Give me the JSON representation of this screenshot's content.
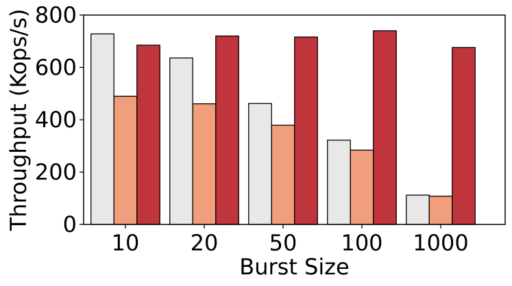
{
  "chart_data": {
    "type": "bar",
    "title": "",
    "xlabel": "Burst Size",
    "ylabel": "Throughput (Kops/s)",
    "categories": [
      "10",
      "20",
      "50",
      "100",
      "1000"
    ],
    "ylim": [
      0,
      800
    ],
    "yticks": [
      0,
      200,
      400,
      600,
      800
    ],
    "grid": false,
    "legend": "none",
    "series": [
      {
        "color": "#e8e8e8",
        "values": [
          728,
          636,
          462,
          322,
          112
        ]
      },
      {
        "color": "#f09e7c",
        "values": [
          490,
          461,
          379,
          284,
          108
        ]
      },
      {
        "color": "#c0353c",
        "values": [
          685,
          720,
          716,
          740,
          676
        ]
      }
    ]
  }
}
